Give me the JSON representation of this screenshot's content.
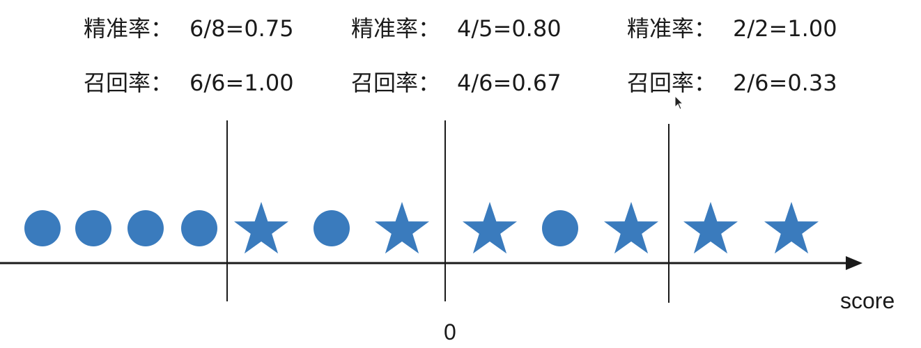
{
  "thresholds": [
    {
      "precision_label": "精准率：",
      "precision_value": "6/8=0.75",
      "recall_label": "召回率：",
      "recall_value": "6/6=1.00"
    },
    {
      "precision_label": "精准率：",
      "precision_value": "4/5=0.80",
      "recall_label": "召回率：",
      "recall_value": "4/6=0.67"
    },
    {
      "precision_label": "精准率：",
      "precision_value": "2/2=1.00",
      "recall_label": "召回率：",
      "recall_value": "2/6=0.33"
    }
  ],
  "samples": [
    "circle",
    "circle",
    "circle",
    "circle",
    "star",
    "circle",
    "star",
    "star",
    "circle",
    "star",
    "star",
    "star"
  ],
  "axis": {
    "label": "score",
    "zero_label": "0"
  },
  "colors": {
    "marker": "#3a7bbd",
    "line": "#1a1a1a"
  }
}
